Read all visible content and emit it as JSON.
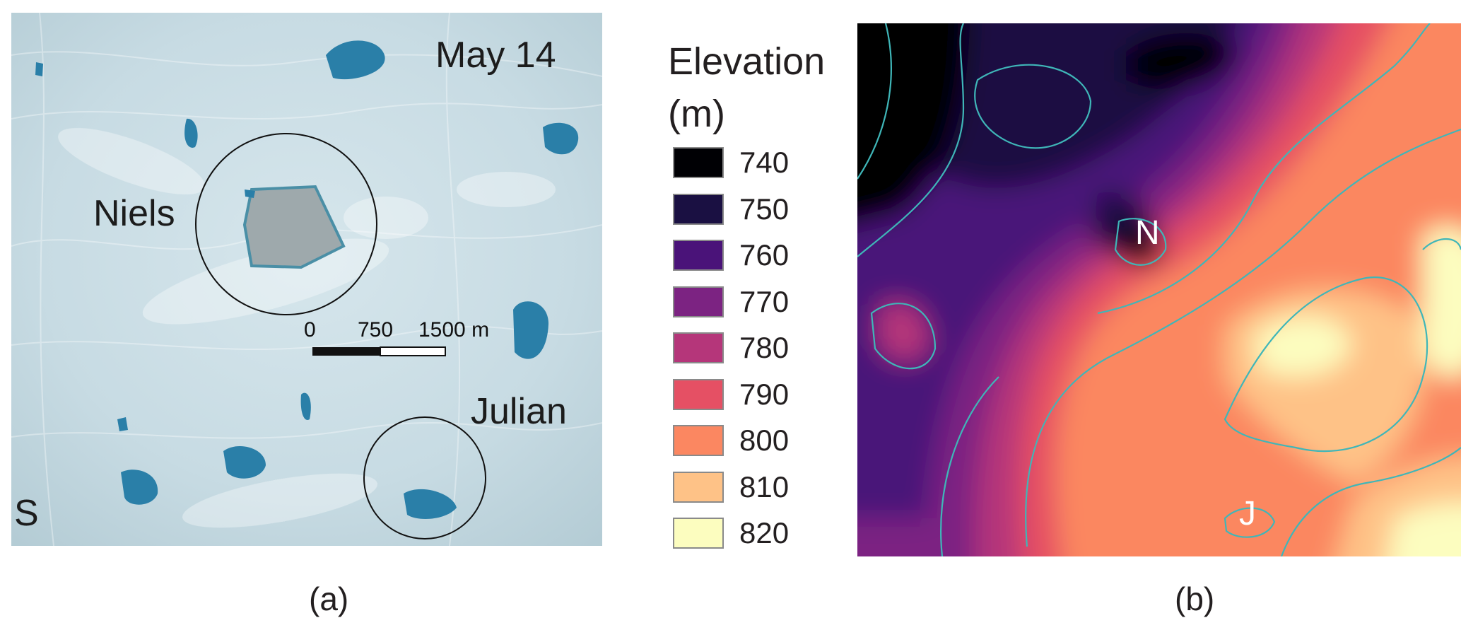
{
  "panel_a": {
    "date": "May 14",
    "lake_niels": "Niels",
    "lake_julian": "Julian",
    "corner_label": "S",
    "scale_bar": {
      "labels": [
        "0",
        "750",
        "1500 m"
      ]
    },
    "caption": "(a)"
  },
  "legend": {
    "title_line1": "Elevation",
    "title_line2": "(m)",
    "items": [
      {
        "value": "740",
        "color": "#000004"
      },
      {
        "value": "750",
        "color": "#1a1042"
      },
      {
        "value": "760",
        "color": "#4a1379"
      },
      {
        "value": "770",
        "color": "#7c2382"
      },
      {
        "value": "780",
        "color": "#b5367a"
      },
      {
        "value": "790",
        "color": "#e55064"
      },
      {
        "value": "800",
        "color": "#fb8761"
      },
      {
        "value": "810",
        "color": "#fec287"
      },
      {
        "value": "820",
        "color": "#fcfdbf"
      }
    ]
  },
  "panel_b": {
    "marker_n": "N",
    "marker_j": "J",
    "contour_color": "#3fb6b8",
    "caption": "(b)"
  }
}
